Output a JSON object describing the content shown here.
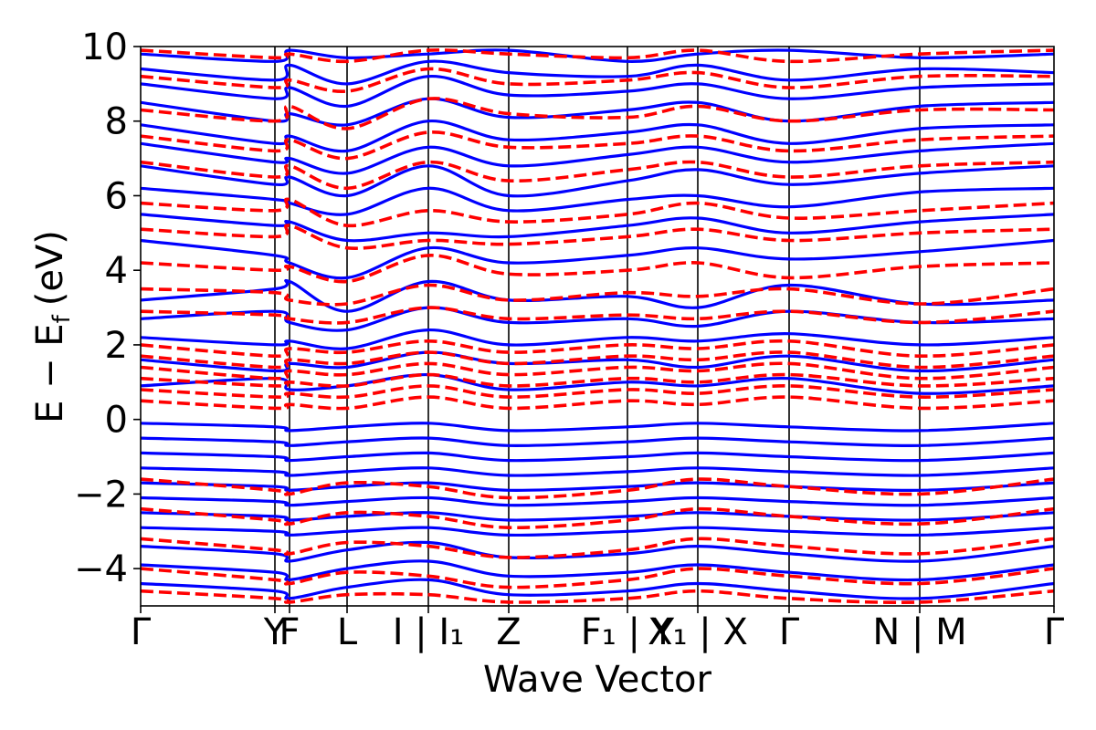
{
  "chart_data": {
    "type": "line",
    "title": "",
    "xlabel": "Wave Vector",
    "ylabel": "E − E",
    "ylabel_subscript": "f",
    "ylabel_unit": "(eV)",
    "ylim": [
      -5,
      10
    ],
    "y_ticks": [
      -4,
      -2,
      0,
      2,
      4,
      6,
      8,
      10
    ],
    "y_tick_labels": [
      "−4",
      "−2",
      "0",
      "2",
      "4",
      "6",
      "8",
      "10"
    ],
    "x_ticks": [
      {
        "pos": 0.0,
        "label": "Γ"
      },
      {
        "pos": 0.147,
        "label": "Y"
      },
      {
        "pos": 0.163,
        "label": "F"
      },
      {
        "pos": 0.226,
        "label": "L"
      },
      {
        "pos": 0.315,
        "label": "I | I₁"
      },
      {
        "pos": 0.403,
        "label": "Z"
      },
      {
        "pos": 0.533,
        "label": "F₁ | Y"
      },
      {
        "pos": 0.61,
        "label": "X₁ | X"
      },
      {
        "pos": 0.71,
        "label": "Γ"
      },
      {
        "pos": 0.853,
        "label": "N | M"
      },
      {
        "pos": 1.0,
        "label": "Γ"
      }
    ],
    "grid": false,
    "series": [
      {
        "style": "solid",
        "color": "#0000ff",
        "bands": [
          [
            9.8,
            9.6,
            9.9,
            9.7,
            9.8,
            9.9,
            9.6,
            9.8,
            9.9,
            9.7,
            9.8
          ],
          [
            9.4,
            9.1,
            9.5,
            9.0,
            9.6,
            9.3,
            9.2,
            9.5,
            9.1,
            9.4,
            9.3
          ],
          [
            9.0,
            8.6,
            8.9,
            8.4,
            9.2,
            8.7,
            8.8,
            9.0,
            8.6,
            8.9,
            9.0
          ],
          [
            8.5,
            8.0,
            8.2,
            7.9,
            8.6,
            8.1,
            8.3,
            8.5,
            8.0,
            8.4,
            8.5
          ],
          [
            7.9,
            7.4,
            7.6,
            7.2,
            8.0,
            7.5,
            7.7,
            7.9,
            7.4,
            7.8,
            7.9
          ],
          [
            7.4,
            6.9,
            7.0,
            6.6,
            7.3,
            6.8,
            7.1,
            7.3,
            6.9,
            7.2,
            7.4
          ],
          [
            6.8,
            6.3,
            6.5,
            6.0,
            6.8,
            6.0,
            6.4,
            6.7,
            6.3,
            6.6,
            6.8
          ],
          [
            6.2,
            5.9,
            5.8,
            5.5,
            6.2,
            5.6,
            5.9,
            6.0,
            5.7,
            6.1,
            6.2
          ],
          [
            5.5,
            5.2,
            5.3,
            4.8,
            5.0,
            4.9,
            5.2,
            5.4,
            5.0,
            5.3,
            5.5
          ],
          [
            4.8,
            4.4,
            4.2,
            3.8,
            4.6,
            4.2,
            4.4,
            4.6,
            4.3,
            4.5,
            4.8
          ],
          [
            3.2,
            3.5,
            3.7,
            2.9,
            3.7,
            3.2,
            3.3,
            3.0,
            3.6,
            3.1,
            3.2
          ],
          [
            2.7,
            2.9,
            2.6,
            2.4,
            3.0,
            2.6,
            2.7,
            2.5,
            2.9,
            2.6,
            2.7
          ],
          [
            2.2,
            2.0,
            2.1,
            1.9,
            2.4,
            2.0,
            2.2,
            2.1,
            2.3,
            2.0,
            2.2
          ],
          [
            1.6,
            1.3,
            1.5,
            1.4,
            1.8,
            1.5,
            1.6,
            1.4,
            1.7,
            1.3,
            1.6
          ],
          [
            0.9,
            1.1,
            0.8,
            0.9,
            1.2,
            0.8,
            1.0,
            0.9,
            1.1,
            0.7,
            0.9
          ],
          [
            -0.1,
            -0.2,
            -0.3,
            -0.2,
            -0.1,
            -0.3,
            -0.2,
            -0.1,
            -0.2,
            -0.3,
            -0.1
          ],
          [
            -0.5,
            -0.6,
            -0.7,
            -0.6,
            -0.5,
            -0.7,
            -0.6,
            -0.5,
            -0.6,
            -0.7,
            -0.5
          ],
          [
            -0.9,
            -1.0,
            -1.1,
            -1.0,
            -0.9,
            -1.1,
            -1.0,
            -0.9,
            -1.0,
            -1.1,
            -0.9
          ],
          [
            -1.3,
            -1.4,
            -1.5,
            -1.4,
            -1.3,
            -1.5,
            -1.4,
            -1.3,
            -1.4,
            -1.5,
            -1.3
          ],
          [
            -1.7,
            -1.8,
            -1.9,
            -1.8,
            -1.7,
            -1.9,
            -1.8,
            -1.7,
            -1.8,
            -1.9,
            -1.7
          ],
          [
            -2.1,
            -2.2,
            -2.3,
            -2.2,
            -2.1,
            -2.3,
            -2.2,
            -2.1,
            -2.2,
            -2.3,
            -2.1
          ],
          [
            -2.5,
            -2.6,
            -2.7,
            -2.6,
            -2.5,
            -2.7,
            -2.6,
            -2.5,
            -2.6,
            -2.7,
            -2.5
          ],
          [
            -2.9,
            -3.0,
            -3.1,
            -3.0,
            -2.9,
            -3.1,
            -3.0,
            -2.9,
            -3.0,
            -3.1,
            -2.9
          ],
          [
            -3.4,
            -3.6,
            -3.8,
            -3.5,
            -3.3,
            -3.7,
            -3.6,
            -3.4,
            -3.6,
            -3.8,
            -3.4
          ],
          [
            -3.9,
            -4.1,
            -4.3,
            -4.0,
            -3.8,
            -4.2,
            -4.1,
            -3.9,
            -4.1,
            -4.3,
            -3.9
          ],
          [
            -4.4,
            -4.6,
            -4.8,
            -4.5,
            -4.3,
            -4.7,
            -4.6,
            -4.4,
            -4.6,
            -4.8,
            -4.4
          ]
        ]
      },
      {
        "style": "dashed",
        "color": "#ff0000",
        "bands": [
          [
            9.9,
            9.7,
            9.8,
            9.6,
            9.9,
            9.8,
            9.7,
            9.9,
            9.6,
            9.8,
            9.9
          ],
          [
            9.2,
            8.9,
            9.1,
            8.8,
            9.4,
            9.0,
            9.1,
            9.3,
            8.9,
            9.2,
            9.2
          ],
          [
            8.3,
            8.0,
            8.4,
            7.8,
            8.6,
            8.2,
            8.1,
            8.4,
            8.0,
            8.3,
            8.3
          ],
          [
            7.6,
            7.2,
            7.5,
            7.0,
            7.7,
            7.3,
            7.4,
            7.6,
            7.2,
            7.5,
            7.6
          ],
          [
            6.9,
            6.5,
            6.8,
            6.2,
            6.9,
            6.4,
            6.7,
            6.9,
            6.5,
            6.8,
            6.9
          ],
          [
            5.8,
            5.6,
            5.9,
            5.2,
            5.6,
            5.3,
            5.5,
            5.8,
            5.4,
            5.6,
            5.8
          ],
          [
            5.1,
            4.9,
            5.2,
            4.6,
            4.8,
            4.7,
            4.9,
            5.1,
            4.8,
            5.0,
            5.1
          ],
          [
            4.2,
            4.0,
            4.1,
            3.7,
            4.4,
            3.9,
            4.0,
            4.2,
            3.8,
            4.1,
            4.2
          ],
          [
            3.5,
            3.4,
            3.2,
            3.1,
            3.6,
            3.2,
            3.4,
            3.3,
            3.5,
            3.1,
            3.5
          ],
          [
            2.9,
            2.8,
            2.7,
            2.6,
            3.0,
            2.7,
            2.8,
            2.7,
            2.9,
            2.6,
            2.9
          ],
          [
            2.0,
            1.7,
            1.9,
            1.8,
            2.1,
            1.8,
            2.0,
            1.9,
            2.1,
            1.7,
            2.0
          ],
          [
            1.7,
            1.4,
            1.6,
            1.5,
            1.8,
            1.5,
            1.7,
            1.6,
            1.8,
            1.4,
            1.7
          ],
          [
            1.4,
            1.1,
            1.3,
            1.2,
            1.5,
            1.2,
            1.4,
            1.3,
            1.5,
            1.1,
            1.4
          ],
          [
            1.1,
            0.9,
            1.0,
            0.9,
            1.2,
            0.9,
            1.1,
            1.0,
            1.2,
            0.9,
            1.1
          ],
          [
            0.8,
            0.6,
            0.7,
            0.6,
            0.9,
            0.6,
            0.8,
            0.7,
            0.9,
            0.6,
            0.8
          ],
          [
            0.5,
            0.3,
            0.4,
            0.3,
            0.6,
            0.3,
            0.5,
            0.4,
            0.6,
            0.3,
            0.5
          ],
          [
            -1.6,
            -1.9,
            -2.0,
            -1.7,
            -1.8,
            -2.1,
            -1.9,
            -1.6,
            -1.8,
            -2.0,
            -1.6
          ],
          [
            -2.4,
            -2.7,
            -2.8,
            -2.5,
            -2.6,
            -2.9,
            -2.7,
            -2.4,
            -2.6,
            -2.8,
            -2.4
          ],
          [
            -3.2,
            -3.5,
            -3.6,
            -3.3,
            -3.4,
            -3.7,
            -3.5,
            -3.2,
            -3.4,
            -3.6,
            -3.2
          ],
          [
            -4.0,
            -4.3,
            -4.4,
            -4.1,
            -4.2,
            -4.5,
            -4.3,
            -4.0,
            -4.2,
            -4.4,
            -4.0
          ],
          [
            -4.6,
            -4.8,
            -4.9,
            -4.7,
            -4.7,
            -4.9,
            -4.8,
            -4.6,
            -4.8,
            -4.9,
            -4.6
          ]
        ]
      }
    ]
  }
}
